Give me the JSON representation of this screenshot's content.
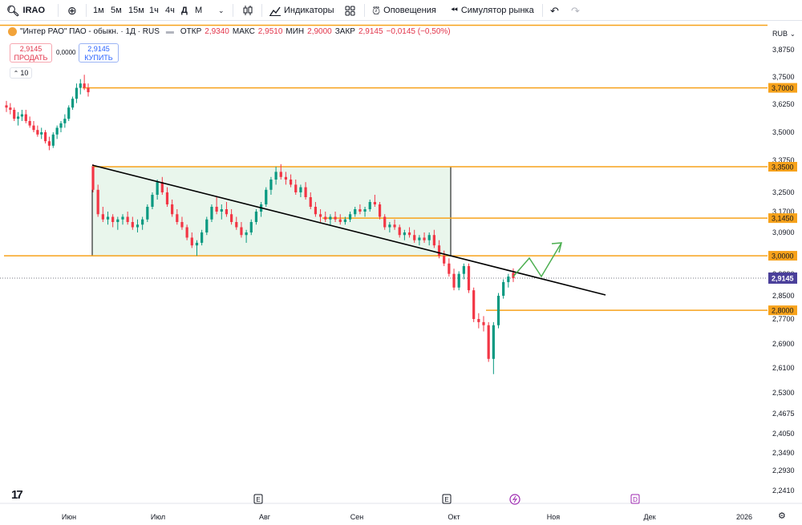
{
  "toolbar": {
    "search_icon": "search-icon",
    "symbol": "IRAO",
    "add_icon": "plus-circle-icon",
    "intervals": [
      "1м",
      "5м",
      "15м",
      "1ч",
      "4ч",
      "Д",
      "М"
    ],
    "active_interval": "Д",
    "chart_type_icon": "candles-icon",
    "indicators_label": "Индикаторы",
    "templates_icon": "grid-icon",
    "alerts_label": "Оповещения",
    "replay_label": "Симулятор рынка",
    "undo_icon": "undo-icon",
    "redo_icon": "redo-icon"
  },
  "legend": {
    "title": "\"Интер РАО\" ПАО - обыкн. · 1Д · RUS",
    "open_label": "ОТКР",
    "open": "2,9340",
    "high_label": "МАКС",
    "high": "2,9510",
    "low_label": "МИН",
    "low": "2,9000",
    "close_label": "ЗАКР",
    "close": "2,9145",
    "change": "−0,0145 (−0,50%)"
  },
  "trade": {
    "sell_price": "2,9145",
    "sell_label": "ПРОДАТЬ",
    "spread": "0,0000",
    "buy_price": "2,9145",
    "buy_label": "КУПИТЬ",
    "volume_value": "10"
  },
  "colors": {
    "up": "#089981",
    "down": "#f23645",
    "level": "#f7a21b",
    "box_fill": "#e9f6ec",
    "trend": "#000000",
    "arrow": "#4caf50",
    "current_price_bg": "#4a3f9a",
    "level_label_bg": "#f7a21b"
  },
  "chart_data": {
    "type": "candlestick",
    "currency": "RUB",
    "y_ticks": [
      "3,8750",
      "3,7500",
      "3,6250",
      "3,5000",
      "3,3750",
      "3,2500",
      "3,1700",
      "3,0900",
      "2,9290",
      "2,8500",
      "2,7700",
      "2,6900",
      "2,6100",
      "2,5300",
      "2,4675",
      "2,4050",
      "2,3490",
      "2,2930",
      "2,2410"
    ],
    "y_tick_values": [
      3.875,
      3.75,
      3.625,
      3.5,
      3.375,
      3.25,
      3.17,
      3.09,
      2.929,
      2.85,
      2.77,
      2.69,
      2.61,
      2.53,
      2.4675,
      2.405,
      2.349,
      2.293,
      2.241
    ],
    "x_labels": [
      "Июн",
      "Июл",
      "Авг",
      "Сен",
      "Окт",
      "Ноя",
      "Дек",
      "2026"
    ],
    "levels": [
      {
        "value": 3.7,
        "label": "3,7000"
      },
      {
        "value": 3.35,
        "label": "3,3500"
      },
      {
        "value": 3.145,
        "label": "3,1450"
      },
      {
        "value": 3.0,
        "label": "3,0000"
      },
      {
        "value": 2.8,
        "label": "2,8000"
      }
    ],
    "current_price": {
      "value": 2.9145,
      "label": "2,9145"
    },
    "candles": [
      [
        3.62,
        3.64,
        3.59,
        3.61
      ],
      [
        3.61,
        3.63,
        3.58,
        3.6
      ],
      [
        3.6,
        3.61,
        3.55,
        3.56
      ],
      [
        3.56,
        3.59,
        3.53,
        3.57
      ],
      [
        3.57,
        3.6,
        3.55,
        3.58
      ],
      [
        3.58,
        3.6,
        3.54,
        3.55
      ],
      [
        3.55,
        3.57,
        3.52,
        3.53
      ],
      [
        3.53,
        3.55,
        3.5,
        3.51
      ],
      [
        3.51,
        3.53,
        3.48,
        3.49
      ],
      [
        3.49,
        3.52,
        3.47,
        3.5
      ],
      [
        3.5,
        3.51,
        3.45,
        3.46
      ],
      [
        3.46,
        3.48,
        3.42,
        3.44
      ],
      [
        3.44,
        3.5,
        3.43,
        3.49
      ],
      [
        3.49,
        3.53,
        3.47,
        3.52
      ],
      [
        3.52,
        3.55,
        3.5,
        3.54
      ],
      [
        3.54,
        3.58,
        3.52,
        3.56
      ],
      [
        3.56,
        3.62,
        3.55,
        3.61
      ],
      [
        3.61,
        3.66,
        3.6,
        3.65
      ],
      [
        3.65,
        3.72,
        3.63,
        3.7
      ],
      [
        3.7,
        3.74,
        3.67,
        3.72
      ],
      [
        3.72,
        3.76,
        3.69,
        3.7
      ],
      [
        3.7,
        3.72,
        3.66,
        3.68
      ],
      [
        3.35,
        3.36,
        3.25,
        3.26
      ],
      [
        3.26,
        3.28,
        3.15,
        3.16
      ],
      [
        3.16,
        3.19,
        3.13,
        3.14
      ],
      [
        3.14,
        3.17,
        3.12,
        3.15
      ],
      [
        3.15,
        3.16,
        3.11,
        3.13
      ],
      [
        3.13,
        3.15,
        3.1,
        3.14
      ],
      [
        3.14,
        3.16,
        3.12,
        3.15
      ],
      [
        3.15,
        3.17,
        3.12,
        3.13
      ],
      [
        3.13,
        3.15,
        3.1,
        3.11
      ],
      [
        3.11,
        3.14,
        3.09,
        3.12
      ],
      [
        3.12,
        3.15,
        3.1,
        3.14
      ],
      [
        3.14,
        3.2,
        3.13,
        3.19
      ],
      [
        3.19,
        3.25,
        3.18,
        3.24
      ],
      [
        3.24,
        3.3,
        3.22,
        3.29
      ],
      [
        3.29,
        3.31,
        3.24,
        3.25
      ],
      [
        3.25,
        3.27,
        3.19,
        3.2
      ],
      [
        3.2,
        3.22,
        3.15,
        3.16
      ],
      [
        3.16,
        3.18,
        3.12,
        3.13
      ],
      [
        3.13,
        3.15,
        3.1,
        3.11
      ],
      [
        3.11,
        3.12,
        3.06,
        3.07
      ],
      [
        3.07,
        3.09,
        3.03,
        3.04
      ],
      [
        3.04,
        3.06,
        3.0,
        3.05
      ],
      [
        3.05,
        3.1,
        3.04,
        3.09
      ],
      [
        3.09,
        3.15,
        3.08,
        3.14
      ],
      [
        3.14,
        3.2,
        3.13,
        3.19
      ],
      [
        3.19,
        3.23,
        3.16,
        3.17
      ],
      [
        3.17,
        3.2,
        3.14,
        3.18
      ],
      [
        3.18,
        3.21,
        3.15,
        3.16
      ],
      [
        3.16,
        3.18,
        3.12,
        3.13
      ],
      [
        3.13,
        3.15,
        3.1,
        3.11
      ],
      [
        3.11,
        3.13,
        3.07,
        3.08
      ],
      [
        3.08,
        3.1,
        3.05,
        3.09
      ],
      [
        3.09,
        3.14,
        3.08,
        3.13
      ],
      [
        3.13,
        3.18,
        3.12,
        3.17
      ],
      [
        3.17,
        3.21,
        3.15,
        3.2
      ],
      [
        3.2,
        3.27,
        3.19,
        3.26
      ],
      [
        3.26,
        3.31,
        3.24,
        3.3
      ],
      [
        3.3,
        3.35,
        3.28,
        3.33
      ],
      [
        3.33,
        3.36,
        3.3,
        3.31
      ],
      [
        3.31,
        3.33,
        3.28,
        3.3
      ],
      [
        3.3,
        3.32,
        3.27,
        3.28
      ],
      [
        3.28,
        3.3,
        3.24,
        3.25
      ],
      [
        3.25,
        3.28,
        3.23,
        3.27
      ],
      [
        3.27,
        3.29,
        3.22,
        3.23
      ],
      [
        3.23,
        3.25,
        3.18,
        3.19
      ],
      [
        3.19,
        3.21,
        3.15,
        3.16
      ],
      [
        3.16,
        3.18,
        3.13,
        3.15
      ],
      [
        3.15,
        3.17,
        3.13,
        3.14
      ],
      [
        3.14,
        3.16,
        3.12,
        3.15
      ],
      [
        3.15,
        3.17,
        3.13,
        3.14
      ],
      [
        3.14,
        3.16,
        3.12,
        3.13
      ],
      [
        3.13,
        3.15,
        3.12,
        3.14
      ],
      [
        3.14,
        3.17,
        3.13,
        3.16
      ],
      [
        3.16,
        3.19,
        3.15,
        3.18
      ],
      [
        3.18,
        3.2,
        3.16,
        3.17
      ],
      [
        3.17,
        3.19,
        3.15,
        3.18
      ],
      [
        3.18,
        3.22,
        3.17,
        3.21
      ],
      [
        3.21,
        3.24,
        3.19,
        3.2
      ],
      [
        3.2,
        3.21,
        3.14,
        3.15
      ],
      [
        3.15,
        3.16,
        3.1,
        3.11
      ],
      [
        3.11,
        3.13,
        3.09,
        3.12
      ],
      [
        3.12,
        3.14,
        3.1,
        3.11
      ],
      [
        3.11,
        3.12,
        3.07,
        3.08
      ],
      [
        3.08,
        3.1,
        3.06,
        3.09
      ],
      [
        3.09,
        3.11,
        3.07,
        3.08
      ],
      [
        3.08,
        3.1,
        3.05,
        3.06
      ],
      [
        3.06,
        3.08,
        3.04,
        3.07
      ],
      [
        3.07,
        3.09,
        3.05,
        3.06
      ],
      [
        3.06,
        3.09,
        3.04,
        3.08
      ],
      [
        3.08,
        3.1,
        3.03,
        3.04
      ],
      [
        3.04,
        3.06,
        2.99,
        3.0
      ],
      [
        3.0,
        3.02,
        2.96,
        2.97
      ],
      [
        2.97,
        2.99,
        2.92,
        2.93
      ],
      [
        2.93,
        2.95,
        2.87,
        2.88
      ],
      [
        2.88,
        2.94,
        2.87,
        2.93
      ],
      [
        2.93,
        2.97,
        2.91,
        2.96
      ],
      [
        2.96,
        2.97,
        2.86,
        2.87
      ],
      [
        2.87,
        2.88,
        2.76,
        2.77
      ],
      [
        2.77,
        2.79,
        2.74,
        2.76
      ],
      [
        2.76,
        2.78,
        2.73,
        2.75
      ],
      [
        2.75,
        2.76,
        2.63,
        2.64
      ],
      [
        2.64,
        2.76,
        2.59,
        2.75
      ],
      [
        2.75,
        2.86,
        2.74,
        2.85
      ],
      [
        2.85,
        2.91,
        2.84,
        2.9
      ],
      [
        2.9,
        2.93,
        2.88,
        2.92
      ],
      [
        2.934,
        2.951,
        2.9,
        2.9145
      ]
    ]
  }
}
